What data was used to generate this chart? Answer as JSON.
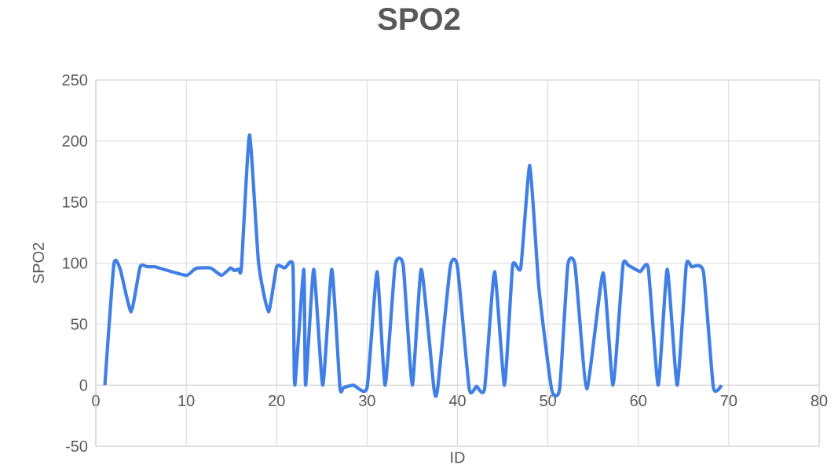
{
  "chart_data": {
    "type": "line",
    "title": "SPO2",
    "xlabel": "ID",
    "ylabel": "SPO2",
    "x": [
      1,
      2,
      2.7,
      3.9,
      4.9,
      5.7,
      6.5,
      7,
      10,
      10.9,
      11.4,
      12.7,
      13.9,
      14.9,
      15.3,
      15.8,
      16.1,
      17,
      18,
      19.1,
      20,
      20.9,
      21.8,
      22,
      23,
      23.2,
      24.1,
      25.1,
      26.1,
      27,
      27.4,
      28.5,
      30,
      31.1,
      32,
      33.1,
      34,
      35,
      36,
      37.4,
      37.8,
      39.2,
      40,
      41.3,
      42.1,
      43,
      44.1,
      45.2,
      46.1,
      47,
      48,
      49,
      50.4,
      51.3,
      52.2,
      53,
      54.3,
      56.1,
      57.2,
      58.3,
      58.9,
      60.2,
      61.1,
      62.2,
      63.2,
      64.3,
      65.3,
      65.9,
      67.2,
      68.3,
      69.2
    ],
    "values": [
      0,
      99,
      95,
      60,
      97,
      97,
      97,
      96,
      90,
      95,
      96,
      96,
      90,
      96,
      94,
      95,
      96,
      205,
      100,
      60,
      97,
      96,
      98,
      0,
      95,
      0,
      95,
      0,
      95,
      -2,
      -2,
      0,
      -2,
      93,
      0,
      98,
      98,
      0,
      95,
      -3,
      -3,
      97,
      97,
      -3,
      -1,
      -3,
      93,
      0,
      98,
      96,
      180,
      80,
      -3,
      -3,
      98,
      98,
      -3,
      92,
      0,
      98,
      98,
      93,
      96,
      0,
      95,
      0,
      98,
      97,
      93,
      -2,
      0
    ],
    "color": "#3f7fe6",
    "xlim": [
      0,
      80
    ],
    "ylim": [
      -50,
      250
    ],
    "xticks": [
      0,
      10,
      20,
      30,
      40,
      50,
      60,
      70,
      80
    ],
    "yticks": [
      -50,
      0,
      50,
      100,
      150,
      200,
      250
    ],
    "grid": true
  }
}
